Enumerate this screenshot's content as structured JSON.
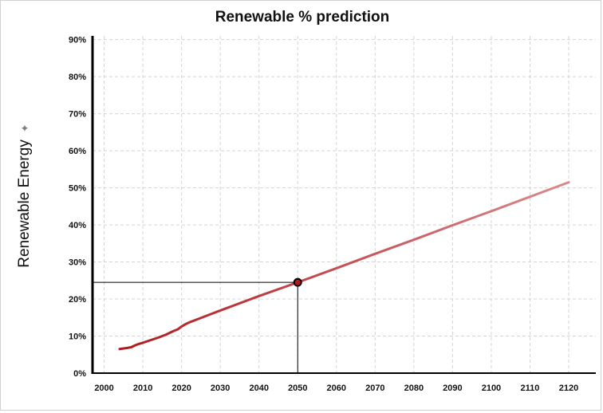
{
  "chart_data": {
    "type": "line",
    "title": "Renewable % prediction",
    "xlabel": "",
    "ylabel": "Renewable Energy",
    "xlim": [
      1997,
      2127
    ],
    "ylim": [
      0,
      91
    ],
    "x_ticks": [
      "2000",
      "2010",
      "2020",
      "2030",
      "2040",
      "2050",
      "2060",
      "2070",
      "2080",
      "2090",
      "2100",
      "2110",
      "2120"
    ],
    "y_ticks": [
      "0%",
      "10%",
      "20%",
      "30%",
      "40%",
      "50%",
      "60%",
      "70%",
      "80%",
      "90%"
    ],
    "grid": true,
    "series": [
      {
        "x": [
          2004,
          2006,
          2007,
          2008,
          2009,
          2010,
          2012,
          2014,
          2016,
          2018,
          2019,
          2020,
          2021,
          2022,
          2030,
          2040,
          2050,
          2060,
          2070,
          2080,
          2090,
          2100,
          2110,
          2120
        ],
        "values": [
          6.5,
          6.8,
          7.0,
          7.5,
          7.9,
          8.2,
          8.9,
          9.6,
          10.4,
          11.4,
          11.8,
          12.6,
          13.2,
          13.7,
          16.9,
          20.8,
          24.5,
          28.3,
          32.2,
          36.0,
          39.9,
          43.7,
          47.6,
          51.5
        ],
        "colors": [
          "#b0191e",
          "#d98a8d"
        ]
      }
    ],
    "highlight_point": {
      "x": 2050,
      "y": 24.5
    }
  },
  "ui": {
    "pin_icon": "pin-icon"
  }
}
